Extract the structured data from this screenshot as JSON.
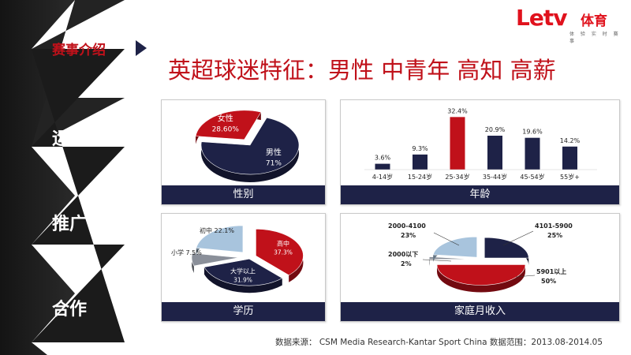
{
  "logo": {
    "brand": "Letv",
    "brand_cn": "体育",
    "tagline": "体 验 实 时 赛 事"
  },
  "sidebar": {
    "active_item": "赛事介绍",
    "items": [
      "运营",
      "推广",
      "合作"
    ]
  },
  "title": "英超球迷特征：男性 中青年 高知 高薪",
  "panels": {
    "gender": "性别",
    "age": "年龄",
    "education": "学历",
    "income": "家庭月收入"
  },
  "source": "数据来源： CSM Media Research-Kantar Sport China 数据范围：2013.08-2014.05",
  "colors": {
    "navy": "#1e2247",
    "red": "#c0111a",
    "light_blue": "#a8c4dd",
    "gray": "#8a8f99"
  },
  "chart_data": [
    {
      "type": "pie",
      "labels": [
        "男性",
        "女性"
      ],
      "values": [
        71,
        28.6
      ],
      "value_labels": [
        "71%",
        "28.60%"
      ]
    },
    {
      "type": "bar",
      "categories": [
        "4-14岁",
        "15-24岁",
        "25-34岁",
        "35-44岁",
        "45-54岁",
        "55岁+"
      ],
      "values": [
        3.6,
        9.3,
        32.4,
        20.9,
        19.6,
        14.2
      ],
      "value_labels": [
        "3.6%",
        "9.3%",
        "32.4%",
        "20.9%",
        "19.6%",
        "14.2%"
      ],
      "ylim": [
        0,
        35
      ]
    },
    {
      "type": "pie",
      "labels": [
        "高中",
        "大学以上",
        "小学",
        "初中"
      ],
      "values": [
        37.3,
        31.9,
        7.5,
        22.1
      ],
      "value_labels": [
        "37.3%",
        "31.9%",
        "7.5%",
        "22.1%"
      ]
    },
    {
      "type": "pie",
      "labels": [
        "4101-5900",
        "5901以上",
        "2000以下",
        "2000-4100"
      ],
      "values": [
        25,
        50,
        2,
        23
      ],
      "value_labels": [
        "25%",
        "50%",
        "2%",
        "23%"
      ]
    }
  ]
}
